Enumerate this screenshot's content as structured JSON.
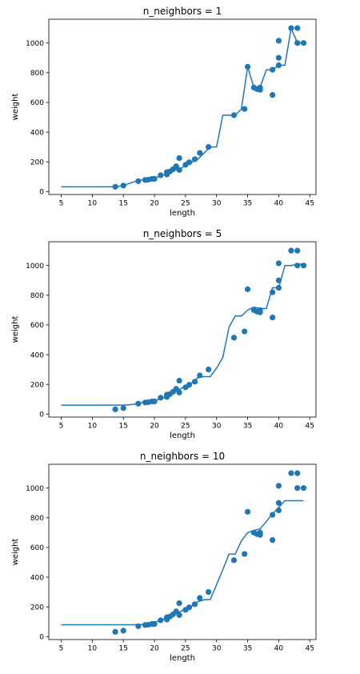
{
  "colors": {
    "series": "#1f77b4",
    "axes": "#000000",
    "background": "#ffffff"
  },
  "chart_data": [
    {
      "type": "scatter",
      "title": "n_neighbors = 1",
      "xlabel": "length",
      "ylabel": "weight",
      "xlim": [
        3,
        46
      ],
      "ylim": [
        -20,
        1160
      ],
      "xticks": [
        "5",
        "10",
        "15",
        "20",
        "25",
        "30",
        "35",
        "40",
        "45"
      ],
      "yticks": [
        "0",
        "200",
        "400",
        "600",
        "800",
        "1000"
      ],
      "grid": false,
      "series": [
        {
          "kind": "scatter",
          "x": [
            13.7,
            15.0,
            17.4,
            18.5,
            19.0,
            19.6,
            20.0,
            21.0,
            22.0,
            22.0,
            22.5,
            23.0,
            23.5,
            24.0,
            24.0,
            25.0,
            25.6,
            26.5,
            27.3,
            28.7,
            32.8,
            34.5,
            35.0,
            36.0,
            36.5,
            37.0,
            37.0,
            39.0,
            39.0,
            40.0,
            40.0,
            40.0,
            42.0,
            43.0,
            43.0,
            44.0
          ],
          "y": [
            32,
            40,
            70,
            78,
            80,
            85,
            85,
            110,
            115,
            130,
            135,
            150,
            170,
            145,
            225,
            180,
            197,
            218,
            260,
            300,
            514,
            556,
            840,
            700,
            690,
            700,
            685,
            650,
            820,
            850,
            900,
            1015,
            1100,
            1000,
            1100,
            1000
          ]
        },
        {
          "kind": "line",
          "x": [
            5,
            13.7,
            15,
            16,
            17,
            18,
            19,
            20,
            21,
            22,
            23,
            24,
            25,
            26,
            27,
            28,
            29,
            30,
            31,
            32,
            33,
            34,
            35,
            36,
            37,
            38,
            39,
            40,
            41,
            42,
            43,
            44
          ],
          "y": [
            32,
            32,
            40,
            55,
            70,
            78,
            80,
            85,
            110,
            115,
            150,
            145,
            180,
            197,
            218,
            260,
            300,
            300,
            514,
            514,
            514,
            556,
            840,
            700,
            700,
            820,
            820,
            850,
            850,
            1100,
            1000,
            1000
          ]
        }
      ]
    },
    {
      "type": "scatter",
      "title": "n_neighbors = 5",
      "xlabel": "length",
      "ylabel": "weight",
      "xlim": [
        3,
        46
      ],
      "ylim": [
        -20,
        1160
      ],
      "xticks": [
        "5",
        "10",
        "15",
        "20",
        "25",
        "30",
        "35",
        "40",
        "45"
      ],
      "yticks": [
        "0",
        "200",
        "400",
        "600",
        "800",
        "1000"
      ],
      "grid": false,
      "series": [
        {
          "kind": "scatter",
          "x": [
            13.7,
            15.0,
            17.4,
            18.5,
            19.0,
            19.6,
            20.0,
            21.0,
            22.0,
            22.0,
            22.5,
            23.0,
            23.5,
            24.0,
            24.0,
            25.0,
            25.6,
            26.5,
            27.3,
            28.7,
            32.8,
            34.5,
            35.0,
            36.0,
            36.5,
            37.0,
            37.0,
            39.0,
            39.0,
            40.0,
            40.0,
            40.0,
            42.0,
            43.0,
            43.0,
            44.0
          ],
          "y": [
            32,
            40,
            70,
            78,
            80,
            85,
            85,
            110,
            115,
            130,
            135,
            150,
            170,
            145,
            225,
            180,
            197,
            218,
            260,
            300,
            514,
            556,
            840,
            700,
            690,
            700,
            685,
            650,
            820,
            850,
            900,
            1015,
            1100,
            1000,
            1100,
            1000
          ]
        },
        {
          "kind": "line",
          "x": [
            5,
            15,
            16,
            17,
            18,
            19,
            20,
            21,
            22,
            23,
            24,
            25,
            26,
            27,
            28,
            29,
            30,
            31,
            32,
            33,
            34,
            35,
            36,
            37,
            38,
            39,
            40,
            41,
            42,
            43,
            44
          ],
          "y": [
            60,
            60,
            63,
            68,
            78,
            83,
            90,
            104,
            118,
            143,
            165,
            190,
            210,
            246,
            252,
            252,
            310,
            380,
            585,
            660,
            660,
            700,
            720,
            710,
            710,
            850,
            850,
            1000,
            1000,
            1010,
            1010
          ]
        }
      ]
    },
    {
      "type": "scatter",
      "title": "n_neighbors = 10",
      "xlabel": "length",
      "ylabel": "weight",
      "xlim": [
        3,
        46
      ],
      "ylim": [
        -20,
        1160
      ],
      "xticks": [
        "5",
        "10",
        "15",
        "20",
        "25",
        "30",
        "35",
        "40",
        "45"
      ],
      "yticks": [
        "0",
        "200",
        "400",
        "600",
        "800",
        "1000"
      ],
      "grid": false,
      "series": [
        {
          "kind": "scatter",
          "x": [
            13.7,
            15.0,
            17.4,
            18.5,
            19.0,
            19.6,
            20.0,
            21.0,
            22.0,
            22.0,
            22.5,
            23.0,
            23.5,
            24.0,
            24.0,
            25.0,
            25.6,
            26.5,
            27.3,
            28.7,
            32.8,
            34.5,
            35.0,
            36.0,
            36.5,
            37.0,
            37.0,
            39.0,
            39.0,
            40.0,
            40.0,
            40.0,
            42.0,
            43.0,
            43.0,
            44.0
          ],
          "y": [
            32,
            40,
            70,
            78,
            80,
            85,
            85,
            110,
            115,
            130,
            135,
            150,
            170,
            145,
            225,
            180,
            197,
            218,
            260,
            300,
            514,
            556,
            840,
            700,
            690,
            700,
            685,
            650,
            820,
            850,
            900,
            1015,
            1100,
            1000,
            1100,
            1000
          ]
        },
        {
          "kind": "line",
          "x": [
            5,
            17,
            18,
            19,
            20,
            21,
            22,
            23,
            24,
            25,
            26,
            27,
            28,
            29,
            30,
            31,
            32,
            33,
            34,
            35,
            36,
            37,
            38,
            39,
            40,
            41,
            42,
            43,
            44
          ],
          "y": [
            80,
            80,
            82,
            85,
            95,
            110,
            127,
            148,
            165,
            185,
            205,
            235,
            248,
            250,
            350,
            450,
            555,
            555,
            645,
            700,
            715,
            725,
            775,
            825,
            870,
            915,
            915,
            915,
            915
          ]
        }
      ]
    }
  ]
}
